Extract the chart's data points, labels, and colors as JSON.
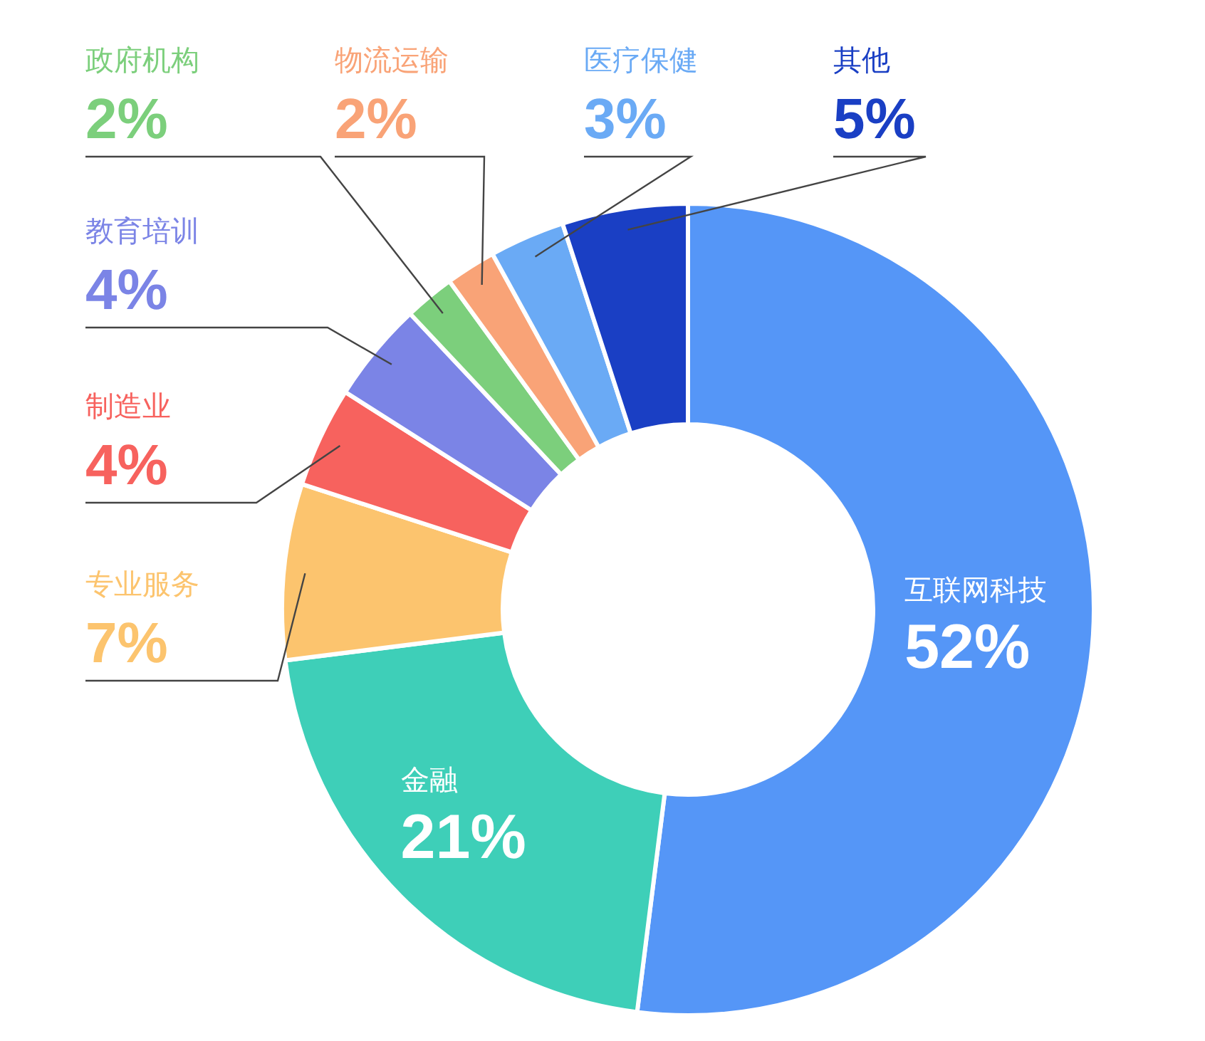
{
  "chart_data": {
    "type": "donut",
    "categories": [
      "互联网科技",
      "金融",
      "专业服务",
      "制造业",
      "教育培训",
      "政府机构",
      "物流运输",
      "医疗保健",
      "其他"
    ],
    "values": [
      52,
      21,
      7,
      4,
      4,
      2,
      2,
      3,
      5
    ],
    "value_labels": [
      "52%",
      "21%",
      "7%",
      "4%",
      "4%",
      "2%",
      "2%",
      "3%",
      "5%"
    ],
    "colors": [
      "#5596f7",
      "#3ecfb8",
      "#fcc46e",
      "#f7625e",
      "#7b84e6",
      "#7ccf7c",
      "#f9a377",
      "#6aaaf5",
      "#1a3fc4"
    ]
  }
}
